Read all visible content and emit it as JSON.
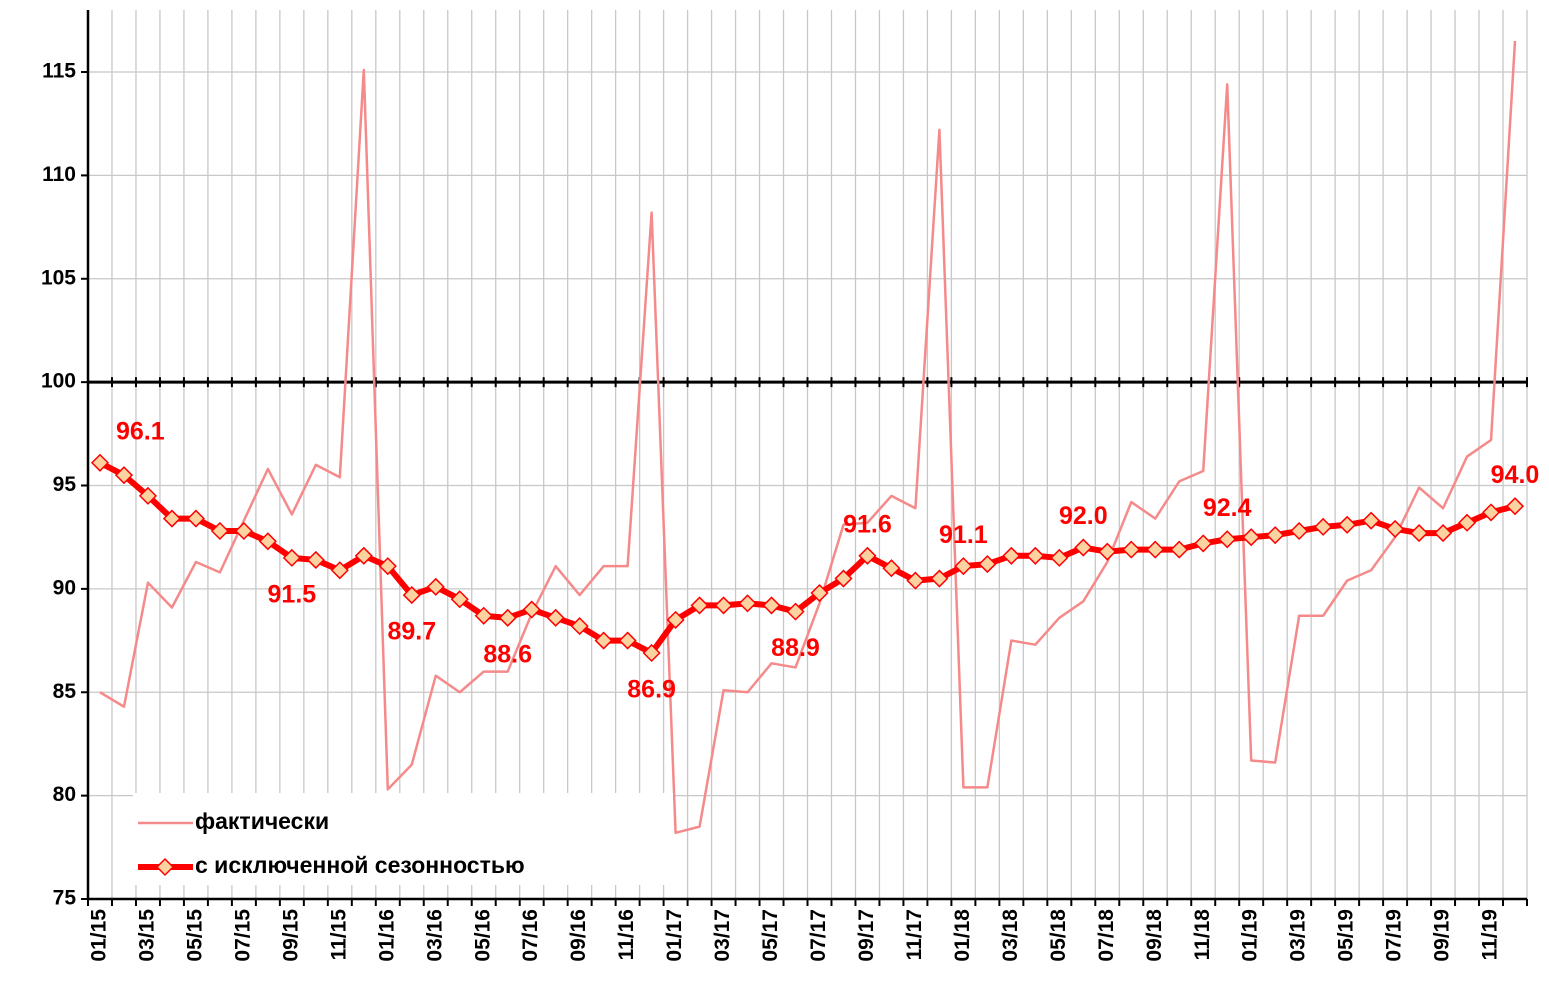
{
  "chart_data": {
    "type": "line",
    "categories": [
      "01/15",
      null,
      "03/15",
      null,
      "05/15",
      null,
      "07/15",
      null,
      "09/15",
      null,
      "11/15",
      null,
      "01/16",
      null,
      "03/16",
      null,
      "05/16",
      null,
      "07/16",
      null,
      "09/16",
      null,
      "11/16",
      null,
      "01/17",
      null,
      "03/17",
      null,
      "05/17",
      null,
      "07/17",
      null,
      "09/17",
      null,
      "11/17",
      null,
      "01/18",
      null,
      "03/18",
      null,
      "05/18",
      null,
      "07/18",
      null,
      "09/18",
      null,
      "11/18",
      null,
      "01/19",
      null,
      "03/19",
      null,
      "05/19",
      null,
      "07/19",
      null,
      "09/19",
      null,
      "11/19",
      null
    ],
    "series": [
      {
        "name": "фактически",
        "color": "#f58a8a",
        "values": [
          85.0,
          84.3,
          90.3,
          89.1,
          91.3,
          90.8,
          93.3,
          95.8,
          93.6,
          96.0,
          95.4,
          115.1,
          80.3,
          81.5,
          85.8,
          85.0,
          86.0,
          86.0,
          88.8,
          91.1,
          89.7,
          91.1,
          91.1,
          108.2,
          78.2,
          78.5,
          85.1,
          85.0,
          86.4,
          86.2,
          89.3,
          93.1,
          93.2,
          94.5,
          93.9,
          112.2,
          80.4,
          80.4,
          87.5,
          87.3,
          88.6,
          89.4,
          91.3,
          94.2,
          93.4,
          95.2,
          95.7,
          114.4,
          81.7,
          81.6,
          88.7,
          88.7,
          90.4,
          90.9,
          92.5,
          94.9,
          93.9,
          96.4,
          97.2,
          116.5
        ]
      },
      {
        "name": "с исключенной сезонностью",
        "color": "#ff0000",
        "marker_color": "#fcd3a0",
        "values": [
          96.1,
          95.5,
          94.5,
          93.4,
          93.4,
          92.8,
          92.8,
          92.3,
          91.5,
          91.4,
          90.9,
          91.6,
          91.1,
          89.7,
          90.1,
          89.5,
          88.7,
          88.6,
          89.0,
          88.6,
          88.2,
          87.5,
          87.5,
          86.9,
          88.5,
          89.2,
          89.2,
          89.3,
          89.2,
          88.9,
          89.8,
          90.5,
          91.6,
          91.0,
          90.4,
          90.5,
          91.1,
          91.2,
          91.6,
          91.6,
          91.5,
          92.0,
          91.8,
          91.9,
          91.9,
          91.9,
          92.2,
          92.4,
          92.5,
          92.6,
          92.8,
          93.0,
          93.1,
          93.3,
          92.9,
          92.7,
          92.7,
          93.2,
          93.7,
          94.0
        ],
        "value_labels": [
          "96.1",
          null,
          null,
          null,
          null,
          null,
          null,
          null,
          "91.5",
          null,
          null,
          null,
          null,
          "89.7",
          null,
          null,
          null,
          "88.6",
          null,
          null,
          null,
          null,
          null,
          "86.9",
          null,
          null,
          null,
          null,
          null,
          "88.9",
          null,
          null,
          "91.6",
          null,
          null,
          null,
          "91.1",
          null,
          null,
          null,
          null,
          "92.0",
          null,
          null,
          null,
          null,
          null,
          "92.4",
          null,
          null,
          null,
          null,
          null,
          null,
          null,
          null,
          null,
          null,
          null,
          "94.0"
        ]
      }
    ],
    "ylim": [
      75,
      118
    ],
    "yticks": [
      75,
      80,
      85,
      90,
      95,
      100,
      105,
      110,
      115
    ],
    "reference_line": 100,
    "grid": true,
    "legend": "lower left"
  }
}
